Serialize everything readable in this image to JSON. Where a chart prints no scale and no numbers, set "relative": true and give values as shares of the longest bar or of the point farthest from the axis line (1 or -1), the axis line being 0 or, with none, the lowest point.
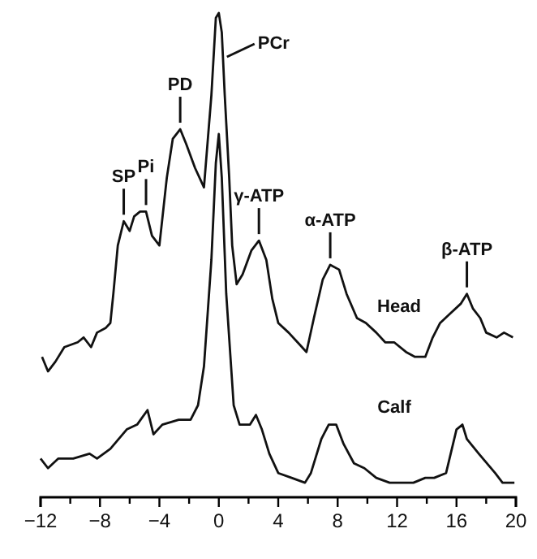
{
  "chart_data": {
    "type": "line",
    "relative": true,
    "xlim": [
      -12,
      20
    ],
    "xticks": [
      -12,
      {
        "value": -10,
        "label": null
      },
      -8,
      {
        "value": -6,
        "label": null
      },
      -4,
      {
        "value": -2,
        "label": null
      },
      0,
      {
        "value": 2,
        "label": null
      },
      4,
      {
        "value": 6,
        "label": null
      },
      8,
      {
        "value": 10,
        "label": null
      },
      12,
      {
        "value": 14,
        "label": null
      },
      16,
      {
        "value": 18,
        "label": null
      },
      20
    ],
    "marker": "none",
    "line_style": "solid",
    "series": [
      {
        "name": "Head",
        "color": "#111111",
        "x": [
          -11.9,
          -11.5,
          -11.0,
          -10.4,
          -9.5,
          -9.1,
          -8.6,
          -8.2,
          -7.6,
          -7.3,
          -7.1,
          -6.8,
          -6.4,
          -6.0,
          -5.7,
          -5.3,
          -4.9,
          -4.5,
          -4.0,
          -3.5,
          -3.1,
          -2.6,
          -2.2,
          -1.6,
          -1.0,
          -0.5,
          -0.2,
          0.0,
          0.2,
          0.4,
          0.7,
          0.9,
          1.2,
          1.6,
          2.2,
          2.7,
          3.2,
          3.6,
          4.0,
          4.7,
          5.3,
          5.9,
          6.4,
          7.0,
          7.5,
          8.1,
          8.6,
          9.3,
          9.9,
          10.6,
          11.2,
          11.8,
          12.6,
          13.2,
          13.9,
          14.4,
          14.9,
          15.6,
          16.3,
          16.7,
          17.1,
          17.6,
          18.0,
          18.7,
          19.2,
          19.8
        ],
        "values": [
          0.29,
          0.26,
          0.28,
          0.31,
          0.32,
          0.33,
          0.31,
          0.34,
          0.35,
          0.36,
          0.42,
          0.52,
          0.57,
          0.55,
          0.58,
          0.59,
          0.59,
          0.54,
          0.52,
          0.66,
          0.74,
          0.76,
          0.73,
          0.68,
          0.64,
          0.83,
          0.99,
          1.0,
          0.96,
          0.83,
          0.66,
          0.52,
          0.44,
          0.46,
          0.51,
          0.53,
          0.49,
          0.41,
          0.36,
          0.34,
          0.32,
          0.3,
          0.37,
          0.45,
          0.48,
          0.47,
          0.42,
          0.37,
          0.36,
          0.34,
          0.32,
          0.32,
          0.3,
          0.29,
          0.29,
          0.33,
          0.36,
          0.38,
          0.4,
          0.42,
          0.39,
          0.37,
          0.34,
          0.33,
          0.34,
          0.33
        ]
      },
      {
        "name": "Calf",
        "color": "#111111",
        "x": [
          -12.0,
          -11.5,
          -10.8,
          -9.8,
          -8.7,
          -8.2,
          -7.3,
          -6.2,
          -5.5,
          -4.8,
          -4.4,
          -3.8,
          -2.7,
          -1.9,
          -1.4,
          -1.0,
          -0.5,
          -0.2,
          0.0,
          0.2,
          0.5,
          1.0,
          1.4,
          2.1,
          2.5,
          2.9,
          3.4,
          4.0,
          4.9,
          5.8,
          6.2,
          6.9,
          7.4,
          7.9,
          8.4,
          9.1,
          9.8,
          10.6,
          11.5,
          13.1,
          13.9,
          14.5,
          15.3,
          16.0,
          16.4,
          16.7,
          17.5,
          18.6,
          19.1,
          19.9
        ],
        "values": [
          0.08,
          0.06,
          0.08,
          0.08,
          0.09,
          0.08,
          0.1,
          0.14,
          0.15,
          0.18,
          0.13,
          0.15,
          0.16,
          0.16,
          0.19,
          0.27,
          0.49,
          0.69,
          0.75,
          0.66,
          0.42,
          0.19,
          0.15,
          0.15,
          0.17,
          0.14,
          0.09,
          0.05,
          0.04,
          0.03,
          0.05,
          0.12,
          0.15,
          0.15,
          0.11,
          0.07,
          0.06,
          0.04,
          0.03,
          0.03,
          0.04,
          0.04,
          0.05,
          0.14,
          0.15,
          0.12,
          0.09,
          0.05,
          0.03,
          0.03
        ]
      }
    ],
    "annotations": [
      {
        "text": "SP",
        "x": -6.4,
        "y": 0.57
      },
      {
        "text": "Pi",
        "x": -4.9,
        "y": 0.59
      },
      {
        "text": "PD",
        "x": -2.6,
        "y": 0.76
      },
      {
        "text": "PCr",
        "x": 0.0,
        "y": 1.0
      },
      {
        "text": "γ-ATP",
        "x": 2.7,
        "y": 0.53
      },
      {
        "text": "α-ATP",
        "x": 7.5,
        "y": 0.48
      },
      {
        "text": "β-ATP",
        "x": 16.7,
        "y": 0.42
      }
    ]
  }
}
